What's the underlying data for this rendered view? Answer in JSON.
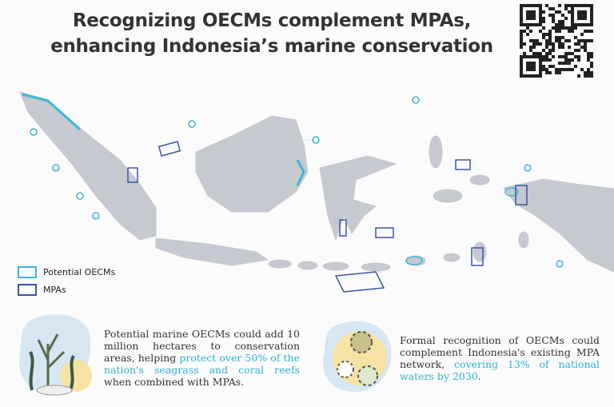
{
  "header": {
    "title": [
      "Recognizing OECMs complement MPAs,",
      "enhancing Indonesia’s marine conservation"
    ]
  },
  "legend": [
    {
      "label": "Potential OECMs",
      "color": "#3bb8d6"
    },
    {
      "label": "MPAs",
      "color": "#3a55a4"
    }
  ],
  "panels": [
    {
      "text": "Potential marine OECMs could add 10 million hectares to conservation areas, helping ",
      "highlight": "protect over 50% of the nation's seagrass and coral reefs",
      "tail": " when combined with MPAs."
    },
    {
      "text": "Formal recognition of OECMs could complement Indonesia's existing MPA network, ",
      "highlight": "covering 13% of national waters by 2030",
      "tail": "."
    }
  ]
}
